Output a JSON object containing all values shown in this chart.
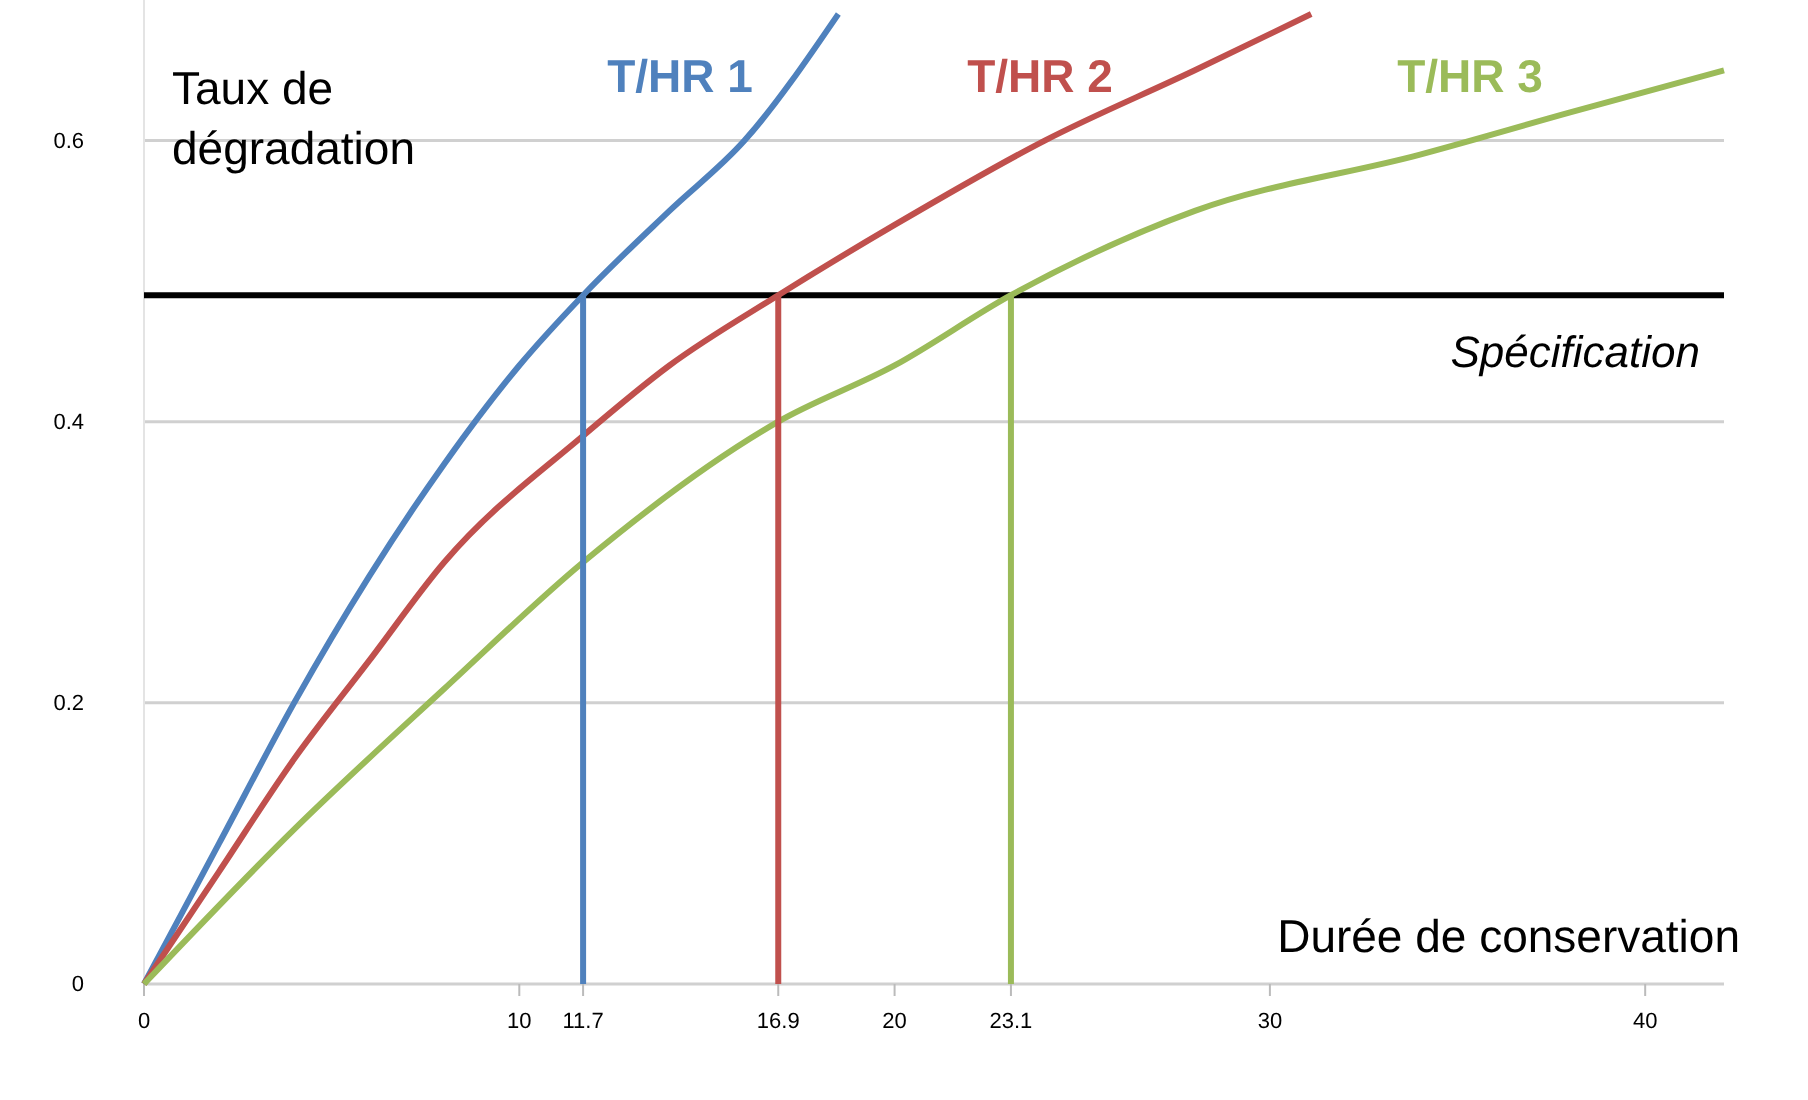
{
  "chart_data": {
    "type": "line",
    "xlabel": "Durée de conservation",
    "ylabel": "Taux de dégradation",
    "xlim": [
      0,
      42.1
    ],
    "ylim": [
      0,
      0.7
    ],
    "xticks": [
      0,
      10,
      11.7,
      16.9,
      20,
      23.1,
      30,
      40
    ],
    "yticks": [
      0,
      0.2,
      0.4,
      0.6
    ],
    "grid": "y",
    "legend": false,
    "marker": "none",
    "line_style": "solid",
    "series": [
      {
        "name": "T/HR 1",
        "color": "#4f81bd",
        "x": [
          0,
          2,
          4,
          6,
          8,
          10,
          11.7,
          14,
          16,
          18.5
        ],
        "values": [
          0,
          0.1,
          0.2,
          0.29,
          0.37,
          0.44,
          0.49,
          0.55,
          0.6,
          0.69
        ]
      },
      {
        "name": "T/HR 2",
        "color": "#c0504d",
        "x": [
          0,
          2,
          4,
          6,
          8,
          11.7,
          14,
          16.9,
          20,
          24,
          28,
          31.1
        ],
        "values": [
          0,
          0.08,
          0.16,
          0.23,
          0.3,
          0.39,
          0.44,
          0.49,
          0.54,
          0.6,
          0.65,
          0.69
        ]
      },
      {
        "name": "T/HR 3",
        "color": "#9bbb59",
        "x": [
          0,
          4,
          8,
          11.7,
          16.9,
          20,
          23.1,
          28,
          34,
          38,
          42.1
        ],
        "values": [
          0,
          0.11,
          0.21,
          0.3,
          0.4,
          0.44,
          0.49,
          0.55,
          0.59,
          0.62,
          0.65
        ]
      },
      {
        "color": "#4f81bd",
        "x": [
          11.7,
          11.7
        ],
        "values": [
          0,
          0.49
        ]
      },
      {
        "color": "#c0504d",
        "x": [
          16.9,
          16.9
        ],
        "values": [
          0,
          0.49
        ]
      },
      {
        "color": "#9bbb59",
        "x": [
          23.1,
          23.1
        ],
        "values": [
          0,
          0.49
        ]
      }
    ],
    "ref_lines": [
      {
        "axis": "y",
        "value": 0.49,
        "label": "Spécification",
        "color": "#000000"
      }
    ]
  }
}
